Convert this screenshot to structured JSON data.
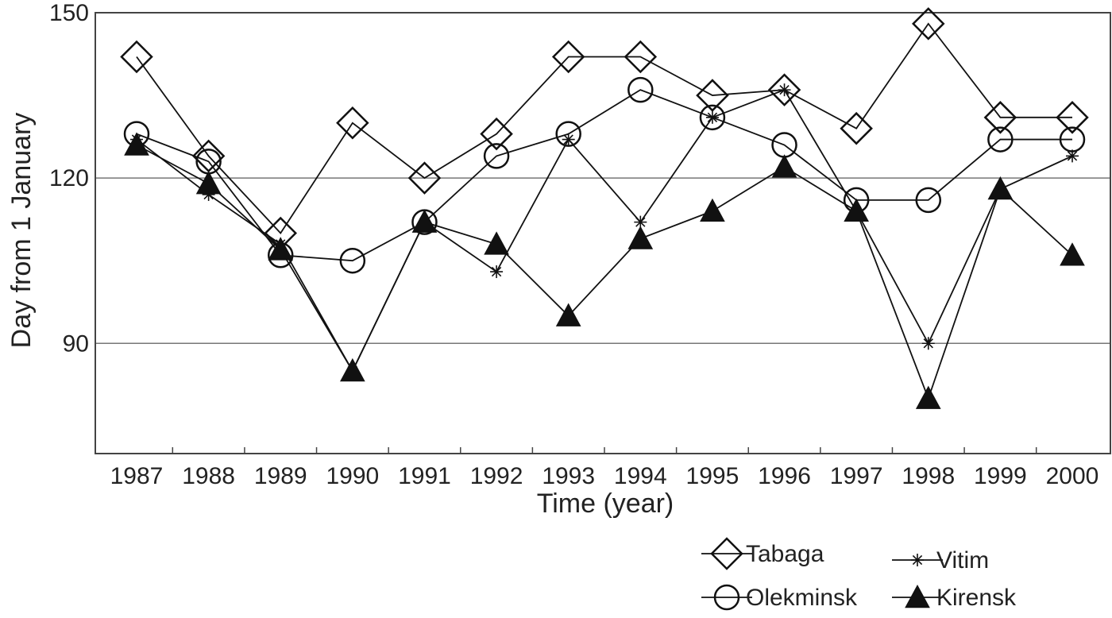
{
  "chart_data": {
    "type": "line",
    "xlabel": "Time (year)",
    "ylabel": "Day from 1 January",
    "categories": [
      "1987",
      "1988",
      "1989",
      "1990",
      "1991",
      "1992",
      "1993",
      "1994",
      "1995",
      "1996",
      "1997",
      "1998",
      "1999",
      "2000"
    ],
    "ylim": [
      70,
      150
    ],
    "yticks": [
      90,
      120,
      150
    ],
    "grid": "horizontal",
    "legend_position": "bottom-right",
    "series": [
      {
        "name": "Tabaga",
        "marker": "diamond-open",
        "values": [
          142,
          124,
          110,
          130,
          120,
          128,
          142,
          142,
          135,
          136,
          129,
          148,
          131,
          131
        ]
      },
      {
        "name": "Olekminsk",
        "marker": "circle-open",
        "values": [
          128,
          123,
          106,
          105,
          112,
          124,
          128,
          136,
          131,
          126,
          116,
          116,
          127,
          127
        ]
      },
      {
        "name": "Vitim",
        "marker": "asterisk",
        "values": [
          127,
          117,
          108,
          85,
          112,
          103,
          127,
          112,
          131,
          136,
          114,
          90,
          118,
          124
        ]
      },
      {
        "name": "Kirensk",
        "marker": "triangle-filled",
        "values": [
          126,
          119,
          107,
          85,
          112,
          108,
          95,
          109,
          114,
          122,
          114,
          80,
          118,
          106
        ]
      }
    ]
  }
}
